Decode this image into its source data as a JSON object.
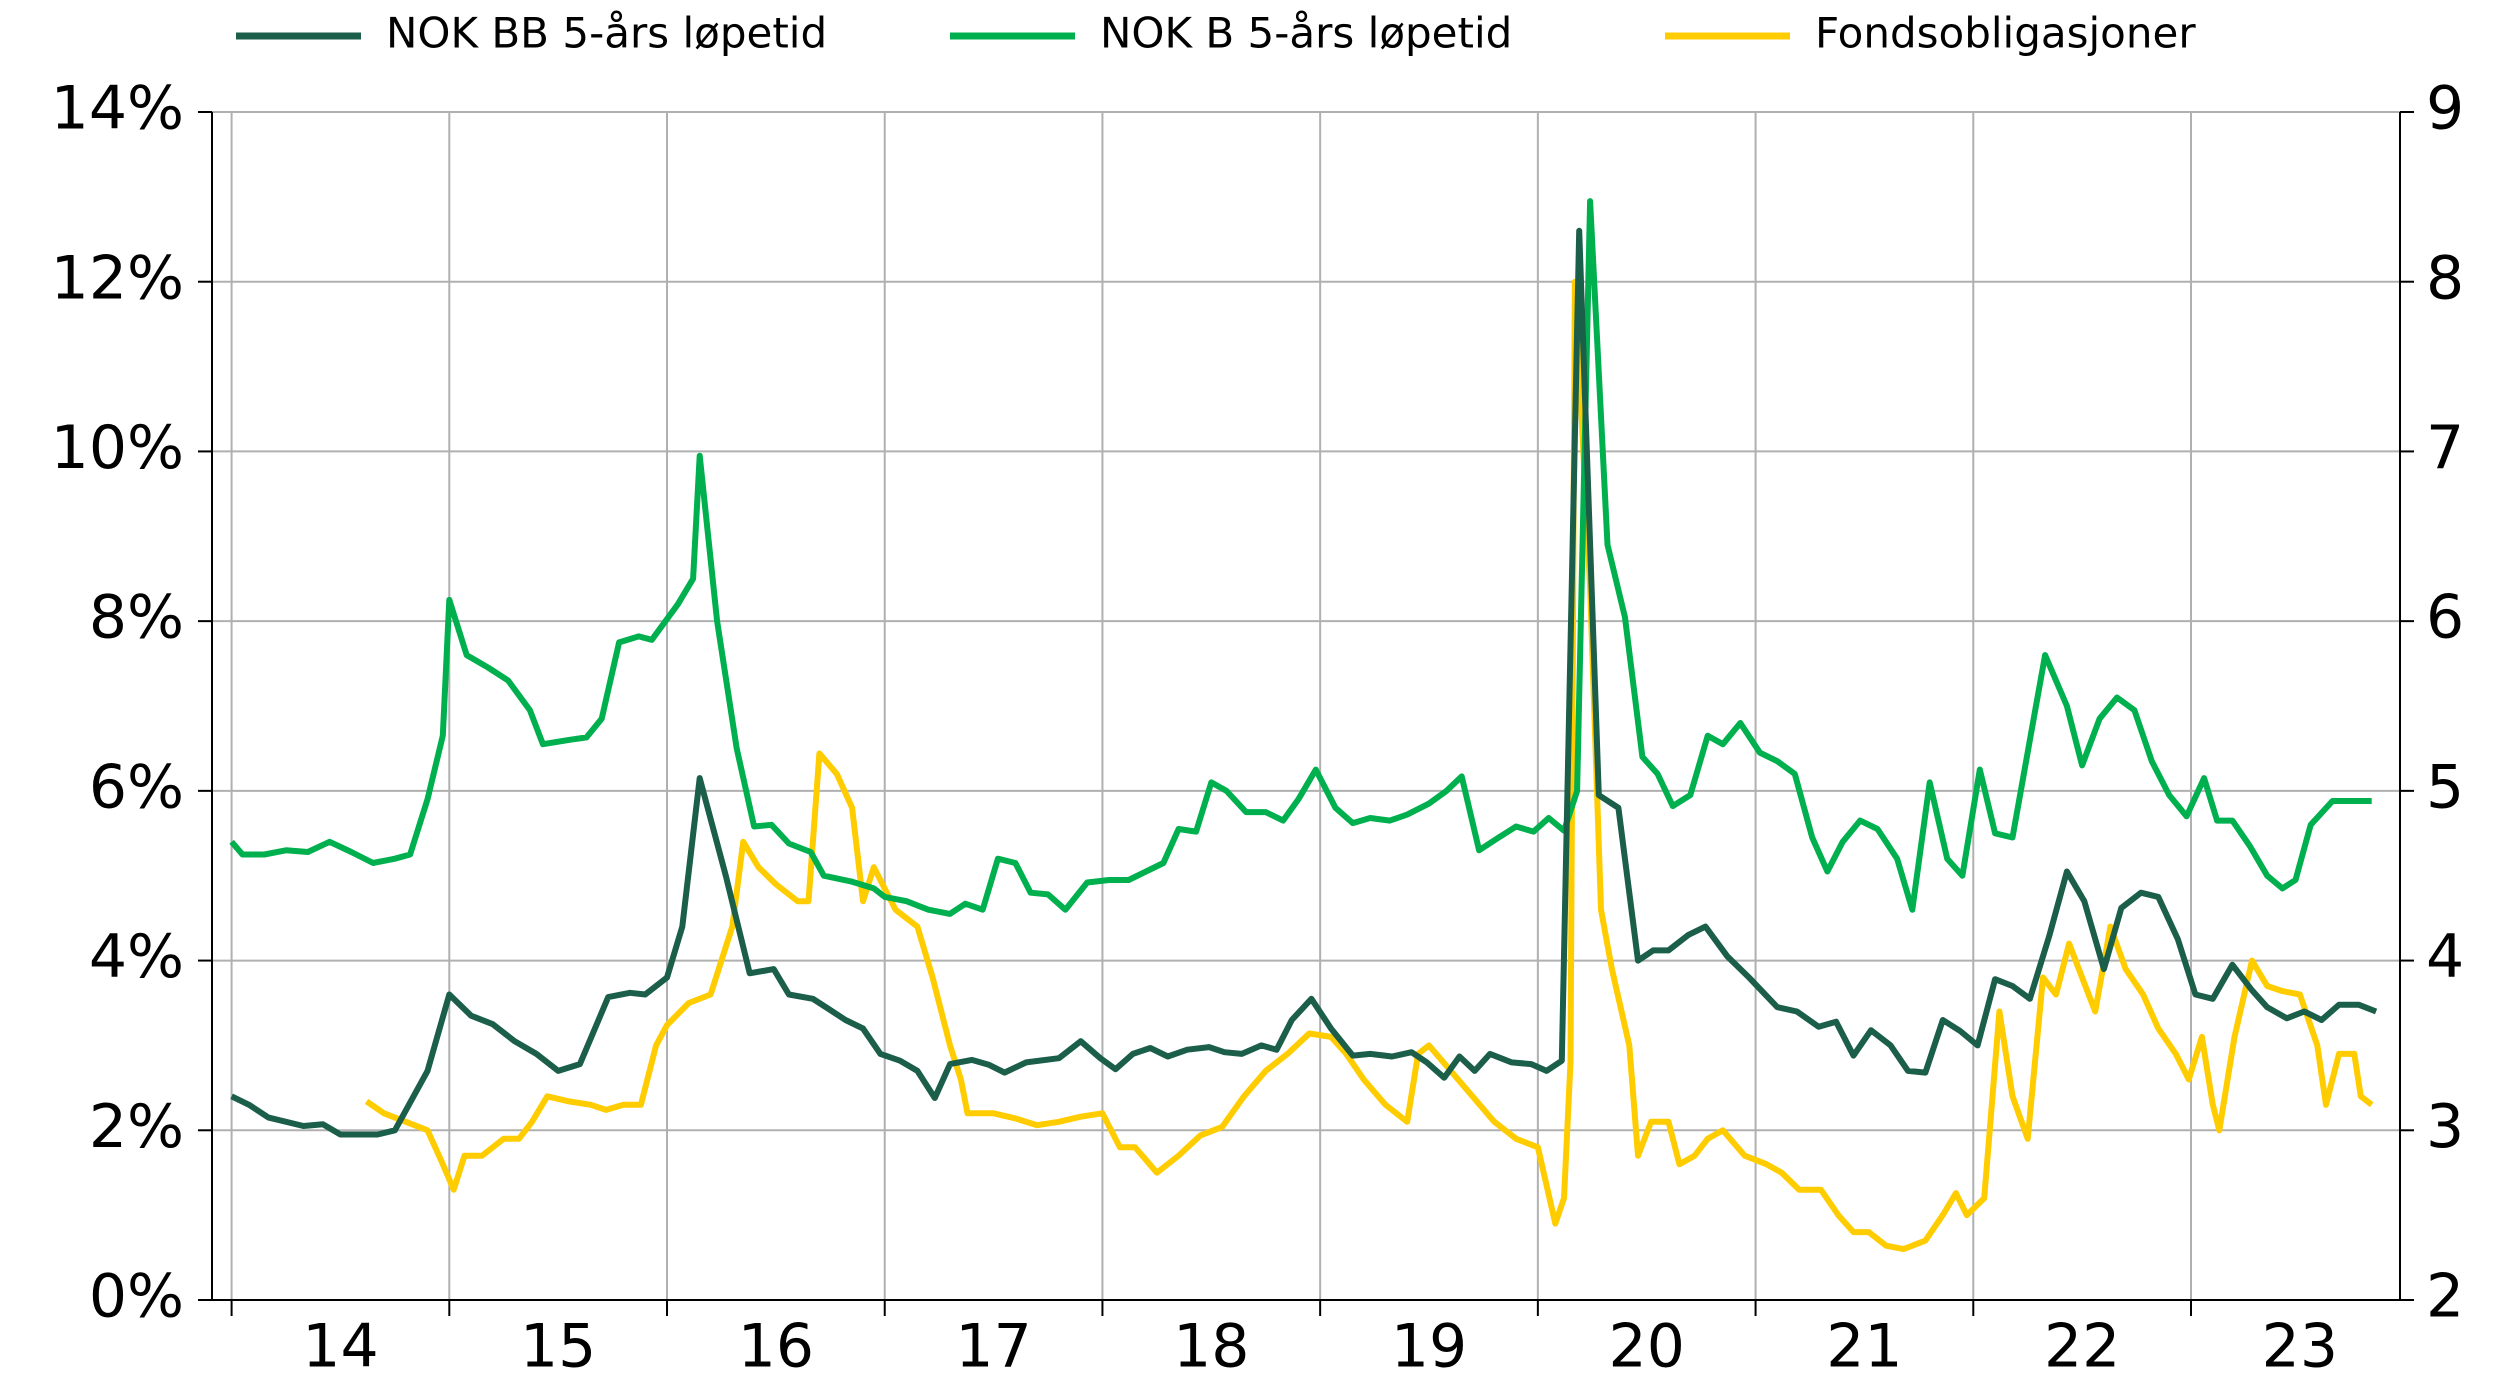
{
  "chart_data": {
    "type": "line",
    "xlim": [
      13.91,
      23.96
    ],
    "xticks": [
      {
        "value": 14,
        "label": "14"
      },
      {
        "value": 15,
        "label": "15"
      },
      {
        "value": 16,
        "label": "16"
      },
      {
        "value": 17,
        "label": "17"
      },
      {
        "value": 18,
        "label": "18"
      },
      {
        "value": 19,
        "label": "19"
      },
      {
        "value": 20,
        "label": "20"
      },
      {
        "value": 21,
        "label": "21"
      },
      {
        "value": 22,
        "label": "22"
      },
      {
        "value": 23,
        "label": "23"
      }
    ],
    "ylim": [
      0,
      14
    ],
    "yticks": [
      {
        "value": 0,
        "label": "0%"
      },
      {
        "value": 2,
        "label": "2%"
      },
      {
        "value": 4,
        "label": "4%"
      },
      {
        "value": 6,
        "label": "6%"
      },
      {
        "value": 8,
        "label": "8%"
      },
      {
        "value": 10,
        "label": "10%"
      },
      {
        "value": 12,
        "label": "12%"
      },
      {
        "value": 14,
        "label": "14%"
      }
    ],
    "y2lim": [
      2,
      9
    ],
    "y2ticks": [
      2,
      3,
      4,
      5,
      6,
      7,
      8,
      9
    ],
    "grid": true,
    "legend": "top",
    "series": [
      {
        "name": "NOK BB 5-års løpetid",
        "color": "#1b5e4a",
        "x": [
          14.0,
          14.08,
          14.17,
          14.33,
          14.42,
          14.5,
          14.67,
          14.75,
          14.9,
          15.0,
          15.1,
          15.2,
          15.3,
          15.4,
          15.5,
          15.6,
          15.73,
          15.83,
          15.9,
          16.0,
          16.07,
          16.15,
          16.27,
          16.38,
          16.49,
          16.56,
          16.67,
          16.73,
          16.82,
          16.9,
          16.98,
          17.07,
          17.15,
          17.23,
          17.3,
          17.4,
          17.48,
          17.55,
          17.65,
          17.8,
          17.9,
          17.99,
          18.06,
          18.14,
          18.22,
          18.3,
          18.39,
          18.49,
          18.56,
          18.64,
          18.73,
          18.8,
          18.87,
          18.96,
          19.05,
          19.15,
          19.23,
          19.33,
          19.42,
          19.49,
          19.57,
          19.64,
          19.71,
          19.78,
          19.88,
          19.97,
          20.04,
          20.11,
          20.19,
          20.28,
          20.37,
          20.46,
          20.53,
          20.6,
          20.69,
          20.77,
          20.87,
          20.97,
          21.1,
          21.19,
          21.29,
          21.37,
          21.45,
          21.53,
          21.62,
          21.7,
          21.78,
          21.86,
          21.94,
          22.02,
          22.1,
          22.18,
          22.26,
          22.35,
          22.43,
          22.51,
          22.6,
          22.68,
          22.77,
          22.85,
          22.94,
          23.02,
          23.1,
          23.19,
          23.28,
          23.35,
          23.44,
          23.52,
          23.6,
          23.68,
          23.77,
          23.85
        ],
        "values": [
          2.4,
          2.3,
          2.15,
          2.05,
          2.07,
          1.95,
          1.95,
          2.0,
          2.7,
          3.6,
          3.35,
          3.25,
          3.05,
          2.9,
          2.7,
          2.78,
          3.57,
          3.62,
          3.6,
          3.8,
          4.4,
          6.15,
          5.0,
          3.85,
          3.9,
          3.6,
          3.55,
          3.45,
          3.3,
          3.2,
          2.9,
          2.82,
          2.7,
          2.38,
          2.78,
          2.83,
          2.77,
          2.68,
          2.8,
          2.85,
          3.05,
          2.85,
          2.72,
          2.9,
          2.97,
          2.87,
          2.95,
          2.98,
          2.92,
          2.9,
          3.0,
          2.95,
          3.3,
          3.55,
          3.2,
          2.88,
          2.9,
          2.87,
          2.92,
          2.8,
          2.62,
          2.87,
          2.7,
          2.9,
          2.8,
          2.78,
          2.7,
          2.82,
          12.6,
          5.95,
          5.8,
          4.0,
          4.12,
          4.12,
          4.3,
          4.4,
          4.05,
          3.8,
          3.45,
          3.4,
          3.22,
          3.28,
          2.88,
          3.18,
          3.0,
          2.7,
          2.68,
          3.3,
          3.17,
          3.0,
          3.78,
          3.7,
          3.55,
          4.3,
          5.05,
          4.7,
          3.9,
          4.62,
          4.8,
          4.75,
          4.25,
          3.6,
          3.55,
          3.95,
          3.65,
          3.45,
          3.32,
          3.4,
          3.3,
          3.48,
          3.48,
          3.4
        ]
      },
      {
        "name": "NOK B 5-års løpetid",
        "color": "#00b04f",
        "x": [
          14.0,
          14.05,
          14.15,
          14.25,
          14.35,
          14.45,
          14.55,
          14.65,
          14.75,
          14.82,
          14.9,
          14.97,
          15.0,
          15.08,
          15.18,
          15.27,
          15.37,
          15.43,
          15.55,
          15.63,
          15.7,
          15.78,
          15.87,
          15.93,
          16.05,
          16.12,
          16.15,
          16.23,
          16.32,
          16.4,
          16.48,
          16.56,
          16.66,
          16.72,
          16.85,
          16.95,
          17.0,
          17.1,
          17.2,
          17.3,
          17.37,
          17.45,
          17.52,
          17.6,
          17.67,
          17.75,
          17.83,
          17.93,
          18.03,
          18.12,
          18.2,
          18.28,
          18.35,
          18.43,
          18.5,
          18.57,
          18.66,
          18.75,
          18.83,
          18.9,
          18.98,
          19.07,
          19.15,
          19.23,
          19.32,
          19.4,
          19.5,
          19.58,
          19.65,
          19.73,
          19.82,
          19.9,
          19.98,
          20.05,
          20.12,
          20.18,
          20.24,
          20.32,
          20.4,
          20.48,
          20.55,
          20.62,
          20.7,
          20.78,
          20.85,
          20.93,
          21.02,
          21.1,
          21.18,
          21.26,
          21.33,
          21.4,
          21.48,
          21.56,
          21.65,
          21.72,
          21.8,
          21.88,
          21.95,
          22.03,
          22.1,
          22.18,
          22.26,
          22.33,
          22.43,
          22.5,
          22.58,
          22.66,
          22.74,
          22.82,
          22.9,
          22.98,
          23.06,
          23.12,
          23.19,
          23.27,
          23.35,
          23.42,
          23.48,
          23.55,
          23.65,
          23.83
        ],
        "values": [
          5.4,
          5.25,
          5.25,
          5.3,
          5.28,
          5.4,
          5.28,
          5.15,
          5.2,
          5.25,
          5.9,
          6.65,
          8.25,
          7.6,
          7.45,
          7.3,
          6.95,
          6.55,
          6.6,
          6.63,
          6.85,
          7.75,
          7.82,
          7.78,
          8.2,
          8.5,
          9.95,
          8.0,
          6.5,
          5.58,
          5.6,
          5.38,
          5.28,
          5.0,
          4.93,
          4.85,
          4.75,
          4.7,
          4.6,
          4.55,
          4.67,
          4.6,
          5.2,
          5.15,
          4.8,
          4.78,
          4.6,
          4.92,
          4.95,
          4.95,
          5.05,
          5.15,
          5.55,
          5.52,
          6.1,
          6.0,
          5.75,
          5.75,
          5.65,
          5.9,
          6.25,
          5.8,
          5.62,
          5.68,
          5.65,
          5.72,
          5.85,
          6.0,
          6.17,
          5.3,
          5.45,
          5.58,
          5.52,
          5.68,
          5.53,
          6.0,
          12.95,
          8.9,
          8.05,
          6.4,
          6.2,
          5.82,
          5.95,
          6.65,
          6.55,
          6.8,
          6.45,
          6.35,
          6.2,
          5.45,
          5.05,
          5.4,
          5.65,
          5.55,
          5.2,
          4.6,
          6.1,
          5.2,
          5.0,
          6.25,
          5.5,
          5.45,
          6.6,
          7.6,
          7.0,
          6.3,
          6.85,
          7.1,
          6.95,
          6.35,
          5.95,
          5.7,
          6.15,
          5.65,
          5.65,
          5.35,
          5.0,
          4.85,
          4.95,
          5.6,
          5.88,
          5.88
        ]
      },
      {
        "name": "Fondsobligasjoner",
        "color": "#ffcc00",
        "axis": "y2",
        "x": [
          14.62,
          14.7,
          14.8,
          14.9,
          14.97,
          15.02,
          15.07,
          15.15,
          15.25,
          15.32,
          15.38,
          15.45,
          15.55,
          15.65,
          15.72,
          15.8,
          15.88,
          15.95,
          16.0,
          16.1,
          16.2,
          16.3,
          16.35,
          16.42,
          16.5,
          16.6,
          16.65,
          16.7,
          16.78,
          16.85,
          16.9,
          16.95,
          17.05,
          17.15,
          17.22,
          17.3,
          17.35,
          17.38,
          17.5,
          17.6,
          17.7,
          17.8,
          17.9,
          18.0,
          18.08,
          18.15,
          18.25,
          18.35,
          18.45,
          18.55,
          18.65,
          18.75,
          18.85,
          18.95,
          19.05,
          19.12,
          19.2,
          19.3,
          19.4,
          19.45,
          19.5,
          19.6,
          19.7,
          19.8,
          19.9,
          20.0,
          20.08,
          20.12,
          20.15,
          20.17,
          20.24,
          20.29,
          20.34,
          20.42,
          20.46,
          20.52,
          20.6,
          20.65,
          20.72,
          20.78,
          20.85,
          20.95,
          21.05,
          21.12,
          21.2,
          21.3,
          21.38,
          21.45,
          21.52,
          21.6,
          21.68,
          21.78,
          21.86,
          21.92,
          21.97,
          22.05,
          22.12,
          22.18,
          22.25,
          22.32,
          22.38,
          22.44,
          22.5,
          22.56,
          22.63,
          22.7,
          22.78,
          22.85,
          22.93,
          22.99,
          23.05,
          23.1,
          23.13,
          23.2,
          23.28,
          23.35,
          23.42,
          23.5,
          23.58,
          23.62,
          23.68,
          23.75,
          23.78,
          23.83
        ],
        "values": [
          3.17,
          3.1,
          3.05,
          3.0,
          2.8,
          2.65,
          2.85,
          2.85,
          2.95,
          2.95,
          3.05,
          3.2,
          3.17,
          3.15,
          3.12,
          3.15,
          3.15,
          3.5,
          3.62,
          3.75,
          3.8,
          4.2,
          4.7,
          4.55,
          4.45,
          4.35,
          4.35,
          5.22,
          5.1,
          4.9,
          4.35,
          4.55,
          4.3,
          4.2,
          3.9,
          3.5,
          3.3,
          3.1,
          3.1,
          3.07,
          3.03,
          3.05,
          3.08,
          3.1,
          2.9,
          2.9,
          2.75,
          2.85,
          2.97,
          3.02,
          3.2,
          3.35,
          3.45,
          3.57,
          3.55,
          3.45,
          3.3,
          3.15,
          3.05,
          3.45,
          3.5,
          3.35,
          3.2,
          3.05,
          2.95,
          2.9,
          2.45,
          2.6,
          3.4,
          8.0,
          6.2,
          4.3,
          3.95,
          3.5,
          2.85,
          3.05,
          3.05,
          2.8,
          2.85,
          2.95,
          3.0,
          2.85,
          2.8,
          2.75,
          2.65,
          2.65,
          2.5,
          2.4,
          2.4,
          2.32,
          2.3,
          2.35,
          2.5,
          2.63,
          2.5,
          2.6,
          3.7,
          3.2,
          2.95,
          3.9,
          3.8,
          4.1,
          3.9,
          3.7,
          4.2,
          3.95,
          3.8,
          3.6,
          3.45,
          3.3,
          3.55,
          3.15,
          3.0,
          3.55,
          4.0,
          3.85,
          3.82,
          3.8,
          3.5,
          3.15,
          3.45,
          3.45,
          3.2,
          3.15
        ]
      }
    ]
  }
}
